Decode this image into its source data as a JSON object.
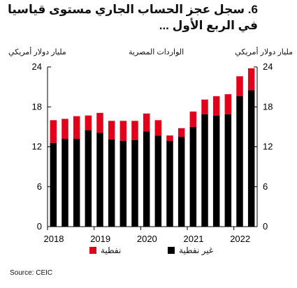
{
  "title_line1": "6. سجل عجز الحساب الجاري مستوى قياسيا",
  "title_line2": "في الربع الأول ...",
  "source": "Source: CEIC",
  "colors": {
    "oil": "#e3001b",
    "non_oil": "#000000"
  },
  "chart_data": {
    "type": "bar",
    "stacked": true,
    "title": "الواردات المصرية",
    "ylabel_left": "مليار دولار أمريكي",
    "ylabel_right": "مليار دولار أمريكي",
    "ylim": [
      0,
      24
    ],
    "yticks": [
      "0",
      "6",
      "12",
      "18",
      "24"
    ],
    "xticks": [
      "2018",
      "2019",
      "2020",
      "2021",
      "2022"
    ],
    "categories": [
      "2018Q1",
      "2018Q2",
      "2018Q3",
      "2018Q4",
      "2019Q1",
      "2019Q2",
      "2019Q3",
      "2019Q4",
      "2020Q1",
      "2020Q2",
      "2020Q3",
      "2020Q4",
      "2021Q1",
      "2021Q2",
      "2021Q3",
      "2021Q4",
      "2022Q1",
      "2022Q2"
    ],
    "series": [
      {
        "name": "غير نفطية",
        "key": "non_oil",
        "values": [
          12.6,
          13.2,
          13.2,
          14.5,
          14.1,
          13.1,
          12.9,
          13.0,
          14.3,
          13.7,
          12.9,
          13.5,
          15.0,
          16.9,
          16.7,
          16.9,
          19.6,
          20.5
        ]
      },
      {
        "name": "نفطية",
        "key": "oil",
        "values": [
          3.4,
          3.0,
          3.4,
          2.2,
          3.0,
          2.8,
          3.0,
          2.9,
          2.7,
          2.3,
          0.8,
          1.3,
          2.3,
          2.2,
          2.9,
          3.0,
          3.0,
          3.3
        ]
      }
    ],
    "legend_position": "bottom"
  }
}
